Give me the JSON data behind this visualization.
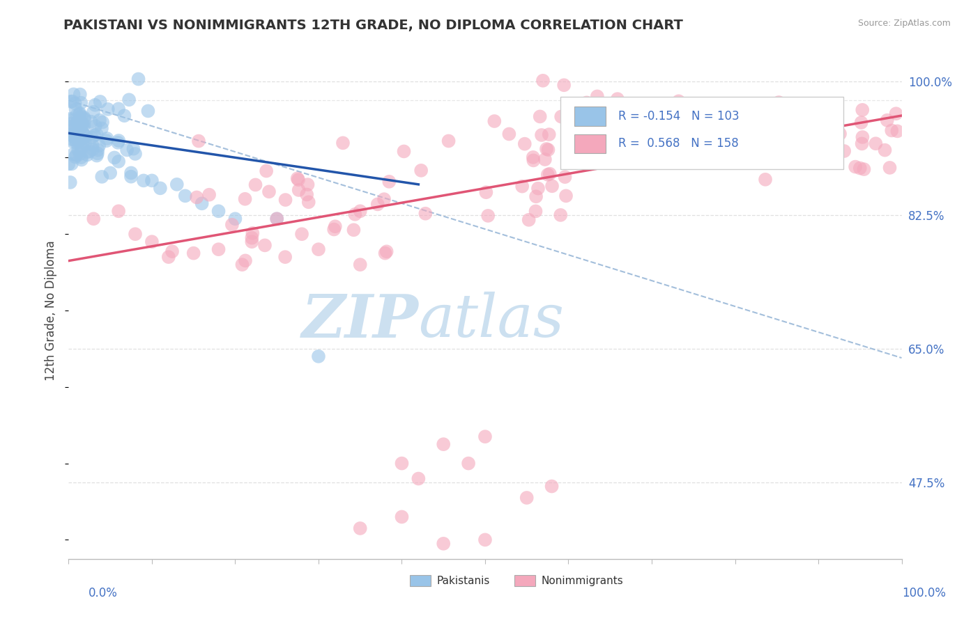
{
  "title": "PAKISTANI VS NONIMMIGRANTS 12TH GRADE, NO DIPLOMA CORRELATION CHART",
  "source_text": "Source: ZipAtlas.com",
  "ylabel": "12th Grade, No Diploma",
  "xlim": [
    0.0,
    1.0
  ],
  "ylim": [
    0.375,
    1.025
  ],
  "y_ticks": [
    0.475,
    0.65,
    0.825,
    1.0
  ],
  "y_tick_labels": [
    "47.5%",
    "65.0%",
    "82.5%",
    "100.0%"
  ],
  "legend_R1": "-0.154",
  "legend_N1": "103",
  "legend_R2": "0.568",
  "legend_N2": "158",
  "pakistani_color": "#99c4e8",
  "nonimmigrant_color": "#f4a8bc",
  "blue_line_color": "#2255aa",
  "pink_line_color": "#e05575",
  "dashed_line_color": "#9ab8d8",
  "title_color": "#333333",
  "axis_label_color": "#4472c4",
  "watermark_zip": "ZIP",
  "watermark_atlas": "atlas",
  "watermark_color_zip": "#cce0f0",
  "watermark_color_atlas": "#cce0f0",
  "background_color": "#ffffff",
  "grid_color": "#dddddd",
  "blue_line_x0": 0.0,
  "blue_line_y0": 0.932,
  "blue_line_x1": 0.42,
  "blue_line_y1": 0.865,
  "pink_line_x0": 0.0,
  "pink_line_y0": 0.765,
  "pink_line_x1": 1.0,
  "pink_line_y1": 0.955,
  "dash_line_x0": 0.0,
  "dash_line_y0": 0.975,
  "dash_line_x1": 1.0,
  "dash_line_y1": 0.638
}
